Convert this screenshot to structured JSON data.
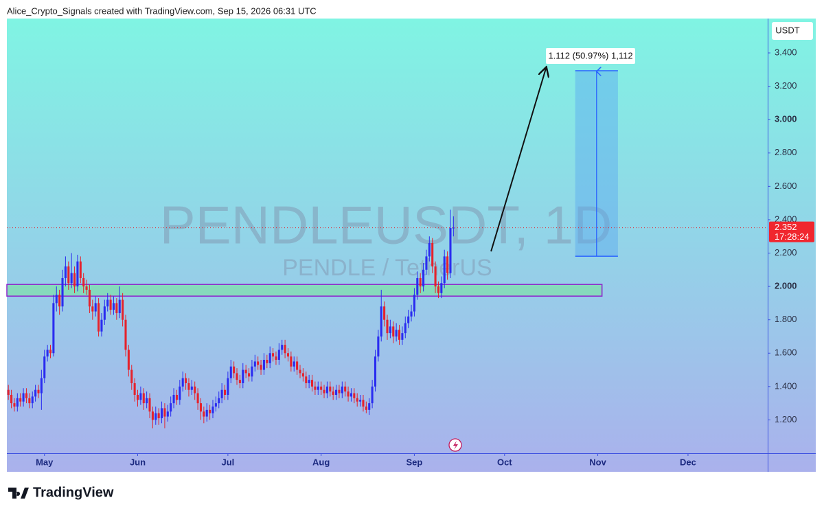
{
  "header": "Alice_Crypto_Signals created with TradingView.com, Sep 15, 2026 06:31 UTC",
  "footer_logo": "TradingView",
  "chart_data": {
    "type": "candlestick",
    "title": "PENDLEUSDT, 1D",
    "subtitle": "PENDLE / TetherUS",
    "y_unit": "USDT",
    "up_color": "#2a2cf0",
    "down_color": "#e5222c",
    "xlim": [
      -0.5,
      252.5
    ],
    "xticks": [
      {
        "value": 12,
        "label": "May"
      },
      {
        "value": 43,
        "label": "Jun"
      },
      {
        "value": 73,
        "label": "Jul"
      },
      {
        "value": 104,
        "label": "Aug"
      },
      {
        "value": 135,
        "label": "Sep"
      },
      {
        "value": 165,
        "label": "Oct"
      },
      {
        "value": 196,
        "label": "Nov"
      },
      {
        "value": 226,
        "label": "Dec"
      }
    ],
    "ylim": [
      1.0,
      3.606
    ],
    "yticks": [
      {
        "value": 1.2,
        "label": "1.200"
      },
      {
        "value": 1.4,
        "label": "1.400"
      },
      {
        "value": 1.6,
        "label": "1.600"
      },
      {
        "value": 1.8,
        "label": "1.800"
      },
      {
        "value": 2.0,
        "label": "2.000"
      },
      {
        "value": 2.2,
        "label": "2.200"
      },
      {
        "value": 2.4,
        "label": "2.400"
      },
      {
        "value": 2.6,
        "label": "2.600"
      },
      {
        "value": 2.8,
        "label": "2.800"
      },
      {
        "value": 3.0,
        "label": "3.000"
      },
      {
        "value": 3.2,
        "label": "3.200"
      },
      {
        "value": 3.4,
        "label": "3.400"
      }
    ],
    "last_price": 2.352,
    "countdown": "17:28:24",
    "support_zone": {
      "low": 1.942,
      "high": 2.012,
      "x_end": 197.4
    },
    "measure": {
      "x": [
        188.5,
        202.7
      ],
      "from": 2.181,
      "to": 3.293,
      "label": "1.112 (50.97%) 1,112"
    },
    "arrow": {
      "x": [
        160.5,
        178.8
      ],
      "y": [
        2.21,
        3.31
      ]
    },
    "candles": [
      [
        1.38,
        1.41,
        1.32,
        1.35
      ],
      [
        1.35,
        1.38,
        1.27,
        1.3
      ],
      [
        1.3,
        1.33,
        1.25,
        1.28
      ],
      [
        1.28,
        1.36,
        1.25,
        1.33
      ],
      [
        1.33,
        1.36,
        1.28,
        1.31
      ],
      [
        1.31,
        1.39,
        1.28,
        1.36
      ],
      [
        1.36,
        1.39,
        1.3,
        1.33
      ],
      [
        1.33,
        1.36,
        1.27,
        1.3
      ],
      [
        1.3,
        1.37,
        1.27,
        1.34
      ],
      [
        1.34,
        1.41,
        1.31,
        1.38
      ],
      [
        1.38,
        1.41,
        1.33,
        1.36
      ],
      [
        1.36,
        1.5,
        1.26,
        1.45
      ],
      [
        1.45,
        1.62,
        1.42,
        1.58
      ],
      [
        1.58,
        1.65,
        1.55,
        1.62
      ],
      [
        1.62,
        1.65,
        1.57,
        1.6
      ],
      [
        1.6,
        1.95,
        1.58,
        1.9
      ],
      [
        1.9,
        2.0,
        1.85,
        1.95
      ],
      [
        1.95,
        1.98,
        1.83,
        1.88
      ],
      [
        1.88,
        2.1,
        1.85,
        2.05
      ],
      [
        2.05,
        2.18,
        2.0,
        2.12
      ],
      [
        2.12,
        2.15,
        1.98,
        2.02
      ],
      [
        2.02,
        2.2,
        1.99,
        2.08
      ],
      [
        2.08,
        2.12,
        1.96,
        2.0
      ],
      [
        2.0,
        2.19,
        1.97,
        2.15
      ],
      [
        2.15,
        2.18,
        2.02,
        2.05
      ],
      [
        2.05,
        2.08,
        1.96,
        2.0
      ],
      [
        2.0,
        2.04,
        1.95,
        1.98
      ],
      [
        1.98,
        2.01,
        1.84,
        1.88
      ],
      [
        1.88,
        1.92,
        1.8,
        1.85
      ],
      [
        1.85,
        1.94,
        1.82,
        1.9
      ],
      [
        1.9,
        1.93,
        1.7,
        1.73
      ],
      [
        1.73,
        1.84,
        1.7,
        1.8
      ],
      [
        1.8,
        1.92,
        1.77,
        1.88
      ],
      [
        1.88,
        1.96,
        1.85,
        1.92
      ],
      [
        1.92,
        1.95,
        1.83,
        1.86
      ],
      [
        1.86,
        1.94,
        1.83,
        1.9
      ],
      [
        1.9,
        1.93,
        1.8,
        1.84
      ],
      [
        1.84,
        2.0,
        1.81,
        1.92
      ],
      [
        1.92,
        1.96,
        1.76,
        1.8
      ],
      [
        1.8,
        1.83,
        1.58,
        1.62
      ],
      [
        1.62,
        1.65,
        1.46,
        1.5
      ],
      [
        1.5,
        1.53,
        1.38,
        1.42
      ],
      [
        1.42,
        1.45,
        1.31,
        1.35
      ],
      [
        1.35,
        1.38,
        1.28,
        1.32
      ],
      [
        1.32,
        1.4,
        1.29,
        1.36
      ],
      [
        1.36,
        1.39,
        1.26,
        1.3
      ],
      [
        1.3,
        1.37,
        1.27,
        1.33
      ],
      [
        1.33,
        1.36,
        1.21,
        1.25
      ],
      [
        1.25,
        1.28,
        1.15,
        1.2
      ],
      [
        1.2,
        1.28,
        1.17,
        1.24
      ],
      [
        1.24,
        1.27,
        1.17,
        1.21
      ],
      [
        1.21,
        1.31,
        1.18,
        1.27
      ],
      [
        1.27,
        1.3,
        1.15,
        1.22
      ],
      [
        1.22,
        1.29,
        1.19,
        1.25
      ],
      [
        1.25,
        1.34,
        1.22,
        1.3
      ],
      [
        1.3,
        1.39,
        1.27,
        1.35
      ],
      [
        1.35,
        1.38,
        1.29,
        1.32
      ],
      [
        1.32,
        1.44,
        1.29,
        1.4
      ],
      [
        1.4,
        1.49,
        1.37,
        1.45
      ],
      [
        1.45,
        1.48,
        1.38,
        1.42
      ],
      [
        1.42,
        1.45,
        1.34,
        1.38
      ],
      [
        1.38,
        1.44,
        1.35,
        1.4
      ],
      [
        1.4,
        1.43,
        1.32,
        1.36
      ],
      [
        1.36,
        1.39,
        1.26,
        1.3
      ],
      [
        1.3,
        1.33,
        1.2,
        1.25
      ],
      [
        1.25,
        1.28,
        1.18,
        1.22
      ],
      [
        1.22,
        1.3,
        1.19,
        1.26
      ],
      [
        1.26,
        1.29,
        1.2,
        1.24
      ],
      [
        1.24,
        1.32,
        1.21,
        1.28
      ],
      [
        1.28,
        1.34,
        1.25,
        1.3
      ],
      [
        1.3,
        1.37,
        1.27,
        1.33
      ],
      [
        1.33,
        1.42,
        1.3,
        1.38
      ],
      [
        1.38,
        1.41,
        1.32,
        1.35
      ],
      [
        1.35,
        1.49,
        1.32,
        1.45
      ],
      [
        1.45,
        1.56,
        1.42,
        1.52
      ],
      [
        1.52,
        1.55,
        1.45,
        1.48
      ],
      [
        1.48,
        1.51,
        1.41,
        1.44
      ],
      [
        1.44,
        1.47,
        1.39,
        1.42
      ],
      [
        1.42,
        1.54,
        1.39,
        1.5
      ],
      [
        1.5,
        1.53,
        1.45,
        1.48
      ],
      [
        1.48,
        1.51,
        1.43,
        1.46
      ],
      [
        1.46,
        1.56,
        1.43,
        1.52
      ],
      [
        1.52,
        1.59,
        1.49,
        1.55
      ],
      [
        1.55,
        1.58,
        1.5,
        1.53
      ],
      [
        1.53,
        1.56,
        1.47,
        1.5
      ],
      [
        1.5,
        1.6,
        1.47,
        1.56
      ],
      [
        1.56,
        1.59,
        1.51,
        1.54
      ],
      [
        1.54,
        1.64,
        1.51,
        1.6
      ],
      [
        1.6,
        1.63,
        1.55,
        1.58
      ],
      [
        1.58,
        1.61,
        1.53,
        1.56
      ],
      [
        1.56,
        1.66,
        1.53,
        1.62
      ],
      [
        1.62,
        1.68,
        1.59,
        1.65
      ],
      [
        1.65,
        1.68,
        1.57,
        1.6
      ],
      [
        1.6,
        1.63,
        1.55,
        1.58
      ],
      [
        1.58,
        1.61,
        1.49,
        1.52
      ],
      [
        1.52,
        1.58,
        1.49,
        1.55
      ],
      [
        1.55,
        1.58,
        1.47,
        1.5
      ],
      [
        1.5,
        1.53,
        1.45,
        1.48
      ],
      [
        1.48,
        1.51,
        1.43,
        1.46
      ],
      [
        1.46,
        1.49,
        1.39,
        1.42
      ],
      [
        1.42,
        1.47,
        1.39,
        1.44
      ],
      [
        1.44,
        1.47,
        1.37,
        1.4
      ],
      [
        1.4,
        1.43,
        1.35,
        1.38
      ],
      [
        1.38,
        1.43,
        1.35,
        1.4
      ],
      [
        1.4,
        1.43,
        1.35,
        1.38
      ],
      [
        1.38,
        1.41,
        1.33,
        1.36
      ],
      [
        1.36,
        1.43,
        1.33,
        1.4
      ],
      [
        1.4,
        1.43,
        1.34,
        1.37
      ],
      [
        1.37,
        1.4,
        1.32,
        1.35
      ],
      [
        1.35,
        1.41,
        1.32,
        1.38
      ],
      [
        1.38,
        1.41,
        1.33,
        1.36
      ],
      [
        1.36,
        1.43,
        1.33,
        1.4
      ],
      [
        1.4,
        1.43,
        1.34,
        1.37
      ],
      [
        1.37,
        1.4,
        1.31,
        1.34
      ],
      [
        1.34,
        1.39,
        1.31,
        1.36
      ],
      [
        1.36,
        1.39,
        1.3,
        1.33
      ],
      [
        1.33,
        1.36,
        1.28,
        1.31
      ],
      [
        1.31,
        1.35,
        1.28,
        1.32
      ],
      [
        1.32,
        1.35,
        1.25,
        1.28
      ],
      [
        1.28,
        1.31,
        1.24,
        1.26
      ],
      [
        1.26,
        1.33,
        1.23,
        1.3
      ],
      [
        1.3,
        1.44,
        1.27,
        1.4
      ],
      [
        1.4,
        1.62,
        1.37,
        1.58
      ],
      [
        1.58,
        1.74,
        1.55,
        1.7
      ],
      [
        1.7,
        1.98,
        1.67,
        1.88
      ],
      [
        1.88,
        1.91,
        1.76,
        1.8
      ],
      [
        1.8,
        1.83,
        1.68,
        1.72
      ],
      [
        1.72,
        1.8,
        1.69,
        1.76
      ],
      [
        1.76,
        1.79,
        1.66,
        1.7
      ],
      [
        1.7,
        1.78,
        1.67,
        1.74
      ],
      [
        1.74,
        1.77,
        1.65,
        1.68
      ],
      [
        1.68,
        1.76,
        1.65,
        1.72
      ],
      [
        1.72,
        1.82,
        1.69,
        1.78
      ],
      [
        1.78,
        1.86,
        1.75,
        1.82
      ],
      [
        1.82,
        1.89,
        1.79,
        1.85
      ],
      [
        1.85,
        1.99,
        1.82,
        1.95
      ],
      [
        1.95,
        2.09,
        1.92,
        2.05
      ],
      [
        2.05,
        2.08,
        1.96,
        2.0
      ],
      [
        2.0,
        2.14,
        1.97,
        2.1
      ],
      [
        2.1,
        2.22,
        2.07,
        2.18
      ],
      [
        2.18,
        2.3,
        2.15,
        2.26
      ],
      [
        2.26,
        2.29,
        2.08,
        2.12
      ],
      [
        2.12,
        2.15,
        1.96,
        2.0
      ],
      [
        2.0,
        2.03,
        1.93,
        1.96
      ],
      [
        1.96,
        2.06,
        1.93,
        2.02
      ],
      [
        2.02,
        2.22,
        1.99,
        2.18
      ],
      [
        2.18,
        2.21,
        2.04,
        2.08
      ],
      [
        2.08,
        2.46,
        2.05,
        2.35
      ],
      [
        2.35,
        2.42,
        2.3,
        2.352
      ]
    ]
  }
}
